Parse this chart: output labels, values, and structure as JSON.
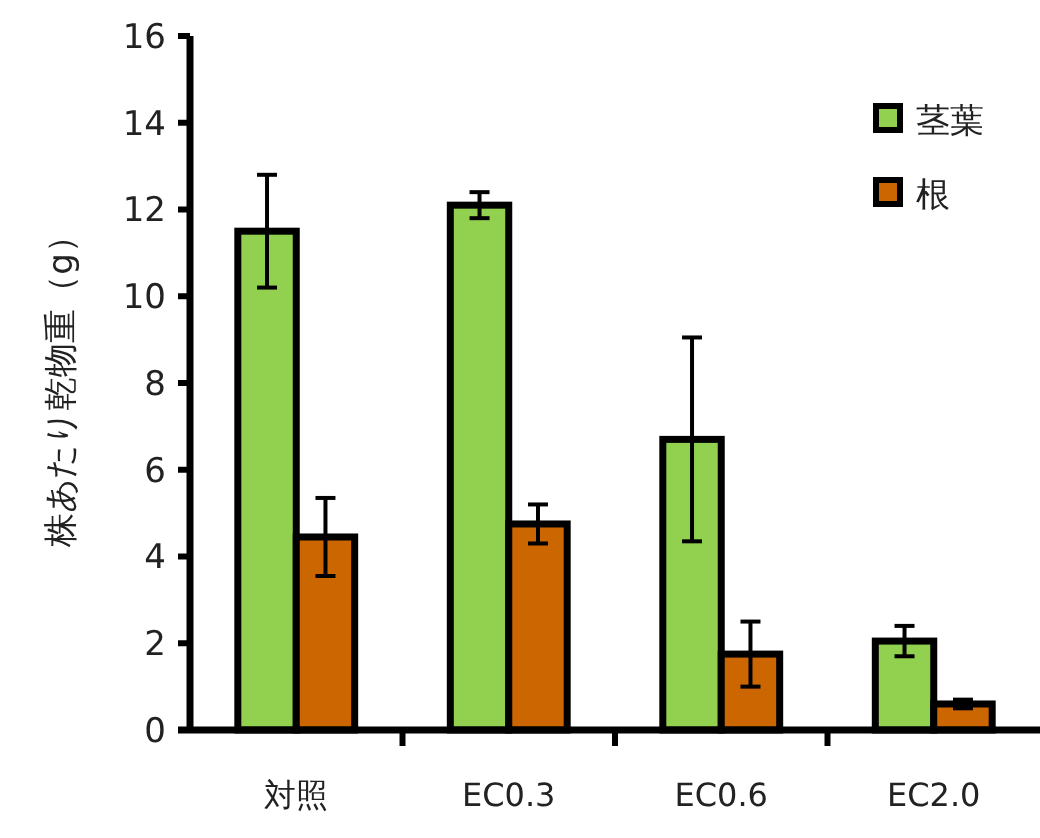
{
  "chart_data": {
    "type": "bar",
    "ylabel": "株あたり乾物重（g）",
    "categories": [
      "対照",
      "EC0.3",
      "EC0.6",
      "EC2.0"
    ],
    "series": [
      {
        "name": "茎葉",
        "color": "#92d050",
        "values": [
          11.5,
          12.1,
          6.7,
          2.05
        ],
        "errors": [
          1.3,
          0.3,
          2.35,
          0.35
        ]
      },
      {
        "name": "根",
        "color": "#cc6600",
        "values": [
          4.45,
          4.75,
          1.75,
          0.6
        ],
        "errors": [
          0.9,
          0.45,
          0.75,
          0.1
        ]
      }
    ],
    "ylim": [
      0,
      16
    ],
    "yticks": [
      0,
      2,
      4,
      6,
      8,
      10,
      12,
      14,
      16
    ],
    "legend": "top right",
    "grid": false
  }
}
